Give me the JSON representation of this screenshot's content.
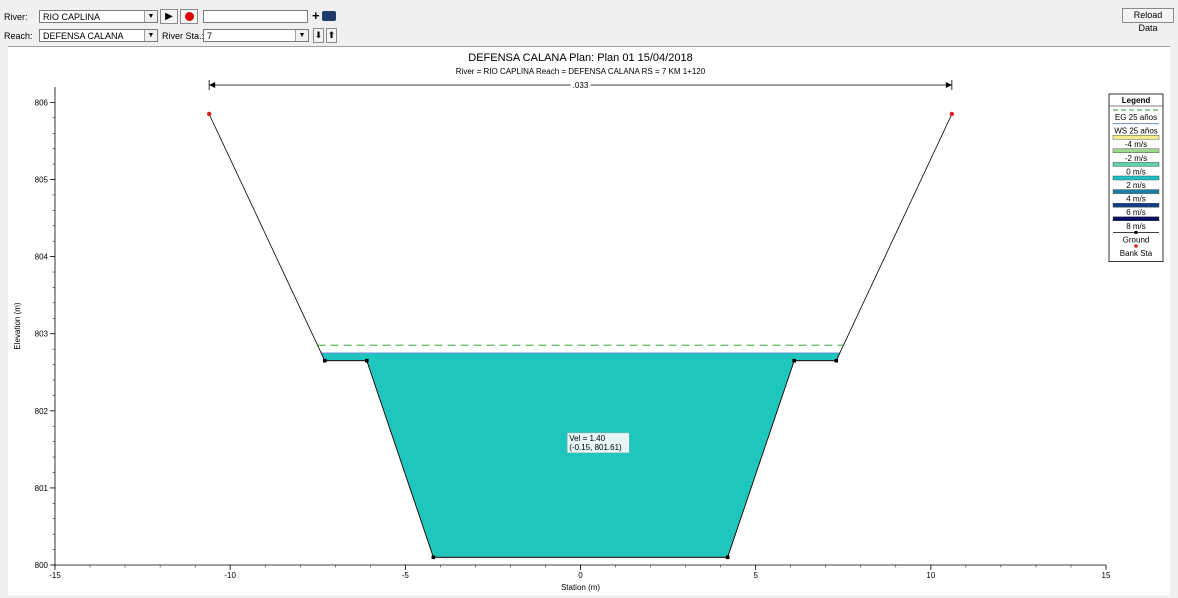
{
  "toolbar": {
    "river_label": "River:",
    "river_value": "RIO CAPLINA",
    "reach_label": "Reach:",
    "reach_value": "DEFENSA CALANA",
    "river_sta_label": "River Sta.:",
    "river_sta_value": "7",
    "animation_field_value": "",
    "reload_label": "Reload Data"
  },
  "chart_data": {
    "type": "cross-section",
    "title": "DEFENSA CALANA        Plan: Plan 01     15/04/2018",
    "subtitle": "River = RIO CAPLINA   Reach = DEFENSA CALANA        RS = 7     KM 1+120",
    "xlabel": "Station (m)",
    "ylabel": "Elevation (m)",
    "xlim": [
      -15,
      15
    ],
    "ylim": [
      800,
      806.2
    ],
    "x_ticks": [
      -15,
      -10,
      -5,
      0,
      5,
      10,
      15
    ],
    "y_ticks": [
      800,
      801,
      802,
      803,
      804,
      805,
      806
    ],
    "manning_n": ".033",
    "manning_range": [
      -10.6,
      10.6
    ],
    "ground": [
      [
        -10.6,
        805.85
      ],
      [
        -7.3,
        802.65
      ],
      [
        -6.1,
        802.65
      ],
      [
        -4.2,
        800.1
      ],
      [
        4.2,
        800.1
      ],
      [
        6.1,
        802.65
      ],
      [
        7.3,
        802.65
      ],
      [
        10.6,
        805.85
      ]
    ],
    "ground_breaks": [
      [
        -7.3,
        802.65
      ],
      [
        -6.1,
        802.65
      ],
      [
        -4.2,
        800.1
      ],
      [
        4.2,
        800.1
      ],
      [
        6.1,
        802.65
      ],
      [
        7.3,
        802.65
      ]
    ],
    "bank_sta": [
      [
        -10.6,
        805.85
      ],
      [
        10.6,
        805.85
      ]
    ],
    "ws_elevation": 802.75,
    "eg_elevation": 802.85,
    "annotation": {
      "line1": "Vel = 1.40",
      "line2": "(-0.15, 801.61)",
      "x": -0.15,
      "y": 801.61
    },
    "legend": {
      "title": "Legend",
      "entries": [
        {
          "label": "EG 25 años",
          "kind": "dash",
          "color": "#5cb85c"
        },
        {
          "label": "WS 25 años",
          "kind": "line",
          "color": "#6a8fd8"
        },
        {
          "label": "-4 m/s",
          "kind": "swatch",
          "color": "#f3ec8a"
        },
        {
          "label": "-2 m/s",
          "kind": "swatch",
          "color": "#9ed68a"
        },
        {
          "label": "0 m/s",
          "kind": "swatch",
          "color": "#5ed3a8"
        },
        {
          "label": "2 m/s",
          "kind": "swatch",
          "color": "#1fc0c0"
        },
        {
          "label": "4 m/s",
          "kind": "swatch",
          "color": "#1a7fa0"
        },
        {
          "label": "6 m/s",
          "kind": "swatch",
          "color": "#143f86"
        },
        {
          "label": "8 m/s",
          "kind": "swatch",
          "color": "#0a1060"
        },
        {
          "label": "Ground",
          "kind": "ground",
          "color": "#000000"
        },
        {
          "label": "Bank Sta",
          "kind": "bank",
          "color": "#e02020"
        }
      ]
    },
    "colors": {
      "water": "#1fc6bd",
      "ground": "#000000",
      "water_edge": "#e05050",
      "eg": "#5cb85c",
      "bank": "#e02020"
    }
  }
}
